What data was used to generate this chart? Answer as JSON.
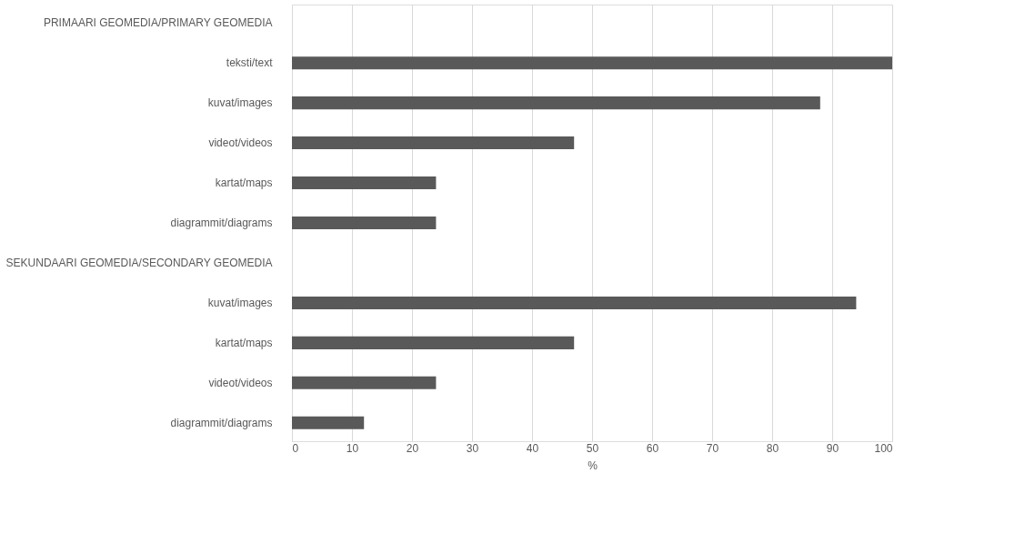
{
  "chart_data": {
    "type": "bar",
    "orientation": "horizontal",
    "xlabel": "%",
    "categories": [
      "PRIMAARI GEOMEDIA/PRIMARY GEOMEDIA",
      "teksti/text",
      "kuvat/images",
      "videot/videos",
      "kartat/maps",
      "diagrammit/diagrams",
      "SEKUNDAARI GEOMEDIA/SECONDARY GEOMEDIA",
      "kuvat/images",
      "kartat/maps",
      "videot/videos",
      "diagrammit/diagrams"
    ],
    "values": [
      null,
      100,
      88,
      47,
      24,
      24,
      null,
      94,
      47,
      24,
      12
    ],
    "color": "#595959",
    "xlim": [
      0,
      100
    ],
    "xticks": [
      0,
      10,
      20,
      30,
      40,
      50,
      60,
      70,
      80,
      90,
      100
    ],
    "grid": "x"
  }
}
